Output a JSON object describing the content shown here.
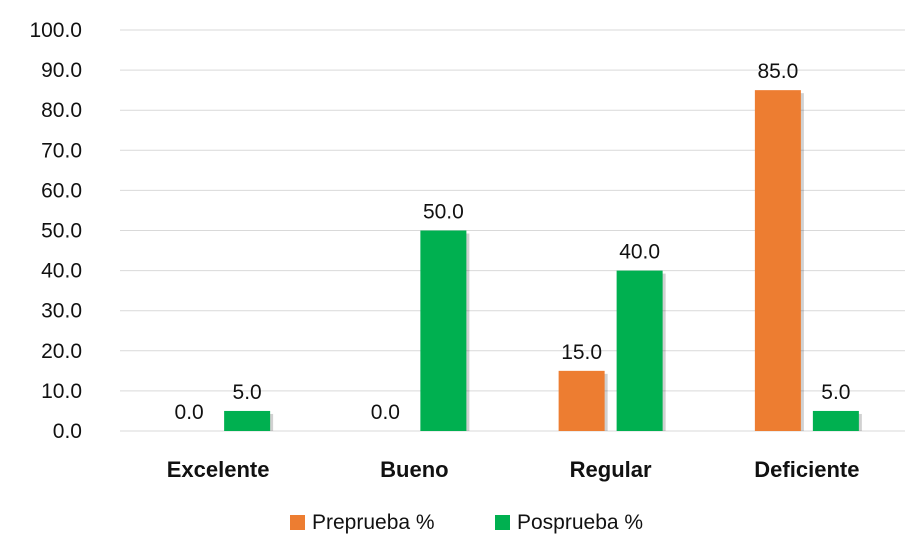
{
  "chart_data": {
    "type": "bar",
    "categories": [
      "Excelente",
      "Bueno",
      "Regular",
      "Deficiente"
    ],
    "series": [
      {
        "name": "Preprueba %",
        "color": "#ed7d31",
        "values": [
          0.0,
          0.0,
          15.0,
          85.0
        ],
        "labels": [
          "0.0",
          "0.0",
          "15.0",
          "85.0"
        ]
      },
      {
        "name": "Posprueba %",
        "color": "#00b050",
        "values": [
          5.0,
          50.0,
          40.0,
          5.0
        ],
        "labels": [
          "5.0",
          "50.0",
          "40.0",
          "5.0"
        ]
      }
    ],
    "ylim": [
      0,
      100
    ],
    "yticks": [
      "0.0",
      "10.0",
      "20.0",
      "30.0",
      "40.0",
      "50.0",
      "60.0",
      "70.0",
      "80.0",
      "90.0",
      "100.0"
    ],
    "title": "",
    "xlabel": "",
    "ylabel": "",
    "grid": true,
    "legend_position": "bottom"
  }
}
